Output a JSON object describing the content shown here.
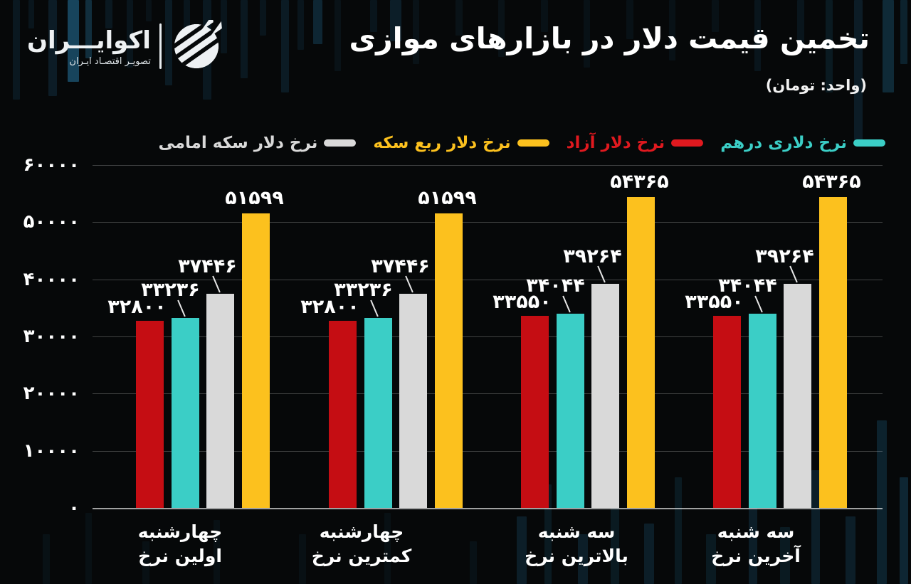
{
  "logo": {
    "name": "اکوایـــران",
    "tagline": "تصویـر اقتصـاد ایـران"
  },
  "header": {
    "title": "تخمین قیمت دلار در بازارهای موازی",
    "unit": "(واحد: تومان)"
  },
  "legend": [
    {
      "label": "نرخ دلاری درهم",
      "color": "#3bcec6"
    },
    {
      "label": "نرخ دلار آزاد",
      "color": "#e0191f"
    },
    {
      "label": "نرخ دلار ربع سکه",
      "color": "#fcc11e"
    },
    {
      "label": "نرخ دلار سکه امامی",
      "color": "#d9d9d9"
    }
  ],
  "chart_data": {
    "type": "bar",
    "title": "تخمین قیمت دلار در بازارهای موازی",
    "unit": "تومان",
    "ylim": [
      0,
      60000
    ],
    "grid": true,
    "legend_position": "top-right",
    "yticks": [
      {
        "value": 0,
        "label": "۰"
      },
      {
        "value": 10000,
        "label": "۱۰۰۰۰"
      },
      {
        "value": 20000,
        "label": "۲۰۰۰۰"
      },
      {
        "value": 30000,
        "label": "۳۰۰۰۰"
      },
      {
        "value": 40000,
        "label": "۴۰۰۰۰"
      },
      {
        "value": 50000,
        "label": "۵۰۰۰۰"
      },
      {
        "value": 60000,
        "label": "۶۰۰۰۰"
      }
    ],
    "categories": [
      {
        "line1": "چهارشنبه",
        "line2": "اولین نرخ"
      },
      {
        "line1": "چهارشنبه",
        "line2": "کمترین نرخ"
      },
      {
        "line1": "سه شنبه",
        "line2": "بالاترین نرخ"
      },
      {
        "line1": "سه شنبه",
        "line2": "آخرین نرخ"
      }
    ],
    "series": [
      {
        "id": "free-dollar-rate",
        "name": "نرخ دلار آزاد",
        "color": "#c50d13",
        "values": [
          32800,
          32800,
          33550,
          33550
        ],
        "labels": [
          "۳۲۸۰۰",
          "۳۲۸۰۰",
          "۳۳۵۵۰",
          "۳۳۵۵۰"
        ]
      },
      {
        "id": "dirham-dollar-rate",
        "name": "نرخ دلاری درهم",
        "color": "#3bcec6",
        "values": [
          33236,
          33236,
          34044,
          34044
        ],
        "labels": [
          "۳۳۲۳۶",
          "۳۳۲۳۶",
          "۳۴۰۴۴",
          "۳۴۰۴۴"
        ]
      },
      {
        "id": "emami-coin-dollar-rate",
        "name": "نرخ دلار سکه امامی",
        "color": "#d9d9d9",
        "values": [
          37446,
          37446,
          39264,
          39264
        ],
        "labels": [
          "۳۷۴۴۶",
          "۳۷۴۴۶",
          "۳۹۲۶۴",
          "۳۹۲۶۴"
        ]
      },
      {
        "id": "quarter-coin-dollar-rate",
        "name": "نرخ دلار ربع سکه",
        "color": "#fcc11e",
        "values": [
          51599,
          51599,
          54365,
          54365
        ],
        "labels": [
          "۵۱۵۹۹",
          "۵۱۵۹۹",
          "۵۴۳۶۵",
          "۵۴۳۶۵"
        ]
      }
    ]
  }
}
